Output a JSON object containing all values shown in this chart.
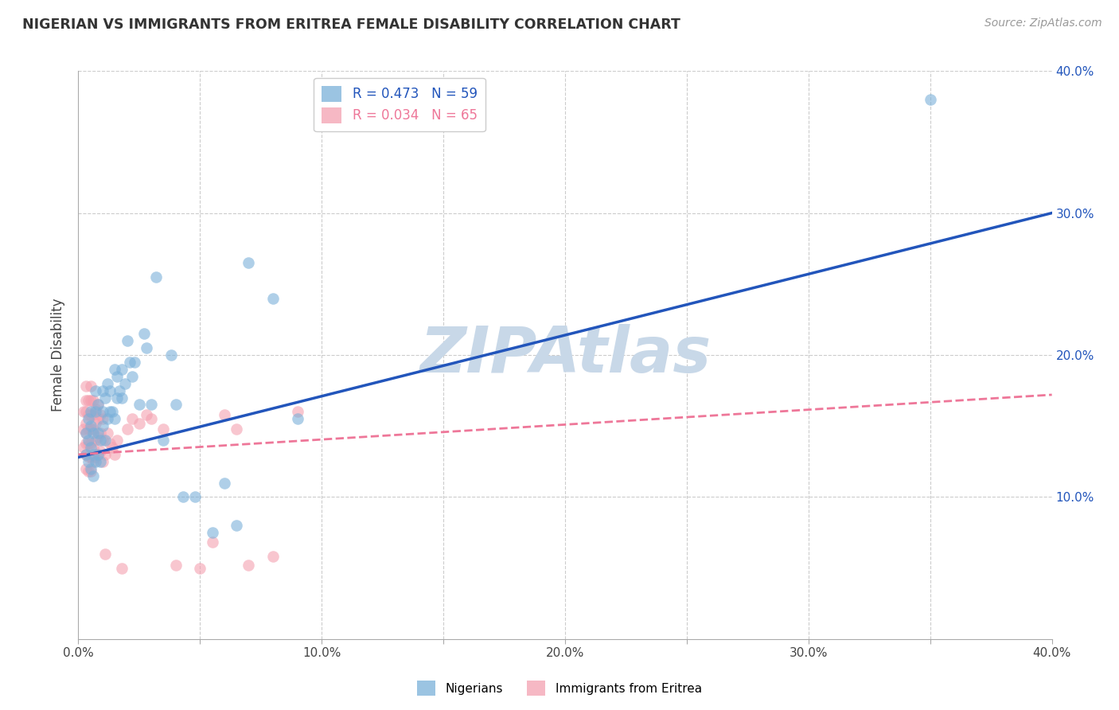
{
  "title": "NIGERIAN VS IMMIGRANTS FROM ERITREA FEMALE DISABILITY CORRELATION CHART",
  "source": "Source: ZipAtlas.com",
  "ylabel": "Female Disability",
  "xlim": [
    0.0,
    0.4
  ],
  "ylim": [
    0.0,
    0.4
  ],
  "xticks": [
    0.0,
    0.05,
    0.1,
    0.15,
    0.2,
    0.25,
    0.3,
    0.35,
    0.4
  ],
  "yticks": [
    0.0,
    0.05,
    0.1,
    0.15,
    0.2,
    0.25,
    0.3,
    0.35,
    0.4
  ],
  "grid_color": "#cccccc",
  "watermark": "ZIPAtlas",
  "watermark_color": "#c8d8e8",
  "nigerian_color": "#7ab0d9",
  "eritrea_color": "#f4a0b0",
  "nigerian_line_color": "#2255bb",
  "eritrea_line_color": "#ee7799",
  "R_nigerian": 0.473,
  "N_nigerian": 59,
  "R_eritrea": 0.034,
  "N_eritrea": 65,
  "nigerian_scatter_x": [
    0.003,
    0.003,
    0.004,
    0.004,
    0.004,
    0.005,
    0.005,
    0.005,
    0.005,
    0.006,
    0.006,
    0.006,
    0.007,
    0.007,
    0.007,
    0.008,
    0.008,
    0.008,
    0.009,
    0.009,
    0.01,
    0.01,
    0.01,
    0.011,
    0.011,
    0.012,
    0.012,
    0.013,
    0.013,
    0.014,
    0.015,
    0.015,
    0.016,
    0.016,
    0.017,
    0.018,
    0.018,
    0.019,
    0.02,
    0.021,
    0.022,
    0.023,
    0.025,
    0.027,
    0.028,
    0.03,
    0.032,
    0.035,
    0.038,
    0.04,
    0.043,
    0.048,
    0.055,
    0.06,
    0.065,
    0.07,
    0.08,
    0.09,
    0.35
  ],
  "nigerian_scatter_y": [
    0.13,
    0.145,
    0.125,
    0.14,
    0.155,
    0.12,
    0.135,
    0.15,
    0.16,
    0.115,
    0.13,
    0.145,
    0.125,
    0.16,
    0.175,
    0.13,
    0.145,
    0.165,
    0.125,
    0.14,
    0.15,
    0.16,
    0.175,
    0.14,
    0.17,
    0.155,
    0.18,
    0.16,
    0.175,
    0.16,
    0.155,
    0.19,
    0.17,
    0.185,
    0.175,
    0.17,
    0.19,
    0.18,
    0.21,
    0.195,
    0.185,
    0.195,
    0.165,
    0.215,
    0.205,
    0.165,
    0.255,
    0.14,
    0.2,
    0.165,
    0.1,
    0.1,
    0.075,
    0.11,
    0.08,
    0.265,
    0.24,
    0.155,
    0.38
  ],
  "eritrea_scatter_x": [
    0.002,
    0.002,
    0.002,
    0.003,
    0.003,
    0.003,
    0.003,
    0.003,
    0.003,
    0.003,
    0.003,
    0.004,
    0.004,
    0.004,
    0.004,
    0.004,
    0.004,
    0.005,
    0.005,
    0.005,
    0.005,
    0.005,
    0.005,
    0.005,
    0.006,
    0.006,
    0.006,
    0.006,
    0.006,
    0.007,
    0.007,
    0.007,
    0.007,
    0.008,
    0.008,
    0.008,
    0.008,
    0.009,
    0.009,
    0.009,
    0.01,
    0.01,
    0.01,
    0.011,
    0.011,
    0.012,
    0.013,
    0.014,
    0.015,
    0.016,
    0.018,
    0.02,
    0.022,
    0.025,
    0.028,
    0.03,
    0.035,
    0.04,
    0.05,
    0.055,
    0.06,
    0.065,
    0.07,
    0.08,
    0.09
  ],
  "eritrea_scatter_y": [
    0.135,
    0.148,
    0.16,
    0.12,
    0.13,
    0.138,
    0.145,
    0.152,
    0.16,
    0.168,
    0.178,
    0.118,
    0.128,
    0.138,
    0.148,
    0.158,
    0.168,
    0.118,
    0.128,
    0.138,
    0.148,
    0.158,
    0.168,
    0.178,
    0.125,
    0.135,
    0.148,
    0.158,
    0.168,
    0.128,
    0.14,
    0.152,
    0.162,
    0.13,
    0.142,
    0.155,
    0.165,
    0.132,
    0.145,
    0.158,
    0.125,
    0.14,
    0.155,
    0.13,
    0.06,
    0.145,
    0.138,
    0.135,
    0.13,
    0.14,
    0.05,
    0.148,
    0.155,
    0.152,
    0.158,
    0.155,
    0.148,
    0.052,
    0.05,
    0.068,
    0.158,
    0.148,
    0.052,
    0.058,
    0.16
  ]
}
